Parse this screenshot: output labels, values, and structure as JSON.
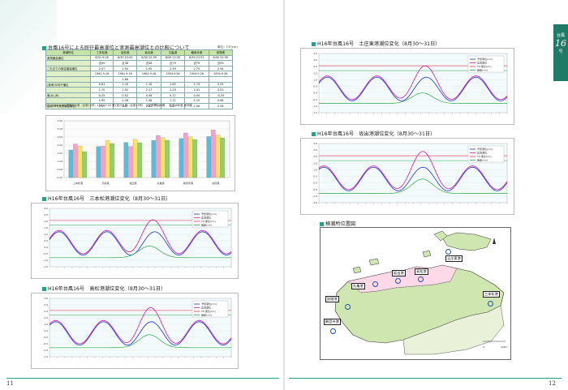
{
  "left": {
    "page_number": "11",
    "table_section_title": "台風16号による既往最高潮位と実測最高潮位との比較について",
    "table_unit": "単位：T.P.(cm)",
    "table_note": "(注) 1954.9.26 洞爺丸台風（台風15号）1961.9.16 第2室戸台風（台風18号）　※記録開始時期： 平成16年度 実測値",
    "table": {
      "columns": [
        "検潮所名",
        "三本松港",
        "高松港",
        "坂出港",
        "丸亀港",
        "観音寺港",
        "詫間港"
      ],
      "rows": [
        [
          "実測最高潮位",
          "8/31 0:18",
          "8/30 22:43",
          "8/30 22:39",
          "8/30 22:30",
          "8/30 21:51",
          "8/30 22:39"
        ],
        [
          "",
          "近30",
          "近38",
          "近38",
          "近79",
          "近79",
          "近94"
        ],
        [
          "これまでの既往最高潮位",
          "2.07",
          "1.94",
          "1.92",
          "2.59",
          "2.75",
          "2.94"
        ],
        [
          "",
          "1961.9.16",
          "1961.9.16",
          "1961.9.16",
          "1954.9.26",
          "1954.9.26",
          "1954.9.26"
        ],
        [
          "",
          "",
          "1.88",
          "",
          "",
          "",
          ""
        ],
        [
          "(参考)平均干潮位",
          "0.81",
          "1.20",
          "1.10",
          "1.65",
          "1.73",
          "2.05"
        ],
        [
          "",
          "1.70",
          "1.92",
          "2.17",
          "2.29",
          "2.41",
          "2.53"
        ],
        [
          "差(A)-(B)",
          "0.25",
          "0.52",
          "0.56",
          "0.17",
          "0.00",
          "-0.25"
        ],
        [
          "",
          "1.95",
          "1.28",
          "1.38",
          "1.11",
          "1.10",
          "0.88"
        ],
        [
          "台風16号実測最高潮位",
          "2.07",
          "2.27",
          "2.27",
          "2.27",
          "2.28",
          "2.28"
        ]
      ]
    },
    "bar_chart": {
      "type": "bar",
      "categories": [
        "三本松港",
        "高松港",
        "坂出港",
        "丸亀港",
        "観音寺港",
        "詫間港"
      ],
      "y_ticks": [
        "3.50",
        "3.00",
        "2.50",
        "2.00",
        "1.50",
        "1.00",
        "0.50",
        "0.00"
      ],
      "ylim": [
        0,
        3.5
      ],
      "series": [
        {
          "color": "#4fc0e0",
          "values": [
            1.7,
            1.92,
            2.17,
            2.29,
            2.41,
            2.53
          ]
        },
        {
          "color": "#f2a0d0",
          "values": [
            2.07,
            1.94,
            1.92,
            2.59,
            2.75,
            2.94
          ]
        },
        {
          "color": "#f7e26a",
          "values": [
            1.95,
            2.28,
            2.36,
            2.46,
            2.51,
            2.62
          ]
        },
        {
          "color": "#8fd16a",
          "values": [
            1.6,
            2.1,
            2.15,
            2.3,
            2.35,
            2.45
          ]
        }
      ]
    },
    "chart1": {
      "title": "H16年台風16号　三本松港潮位変化（8月30〜31日）",
      "legend": [
        "予想潮位(cm)",
        "実測潮位",
        "T.P.潮位(cm)",
        "偏差(cm)"
      ],
      "y_ticks": [
        "3.0",
        "2.5",
        "2.0",
        "1.5",
        "1.0",
        "0.5",
        "0.0",
        "-0.5",
        "-1.0",
        "-1.5"
      ],
      "ylim": [
        -1.5,
        3.0
      ]
    },
    "chart2": {
      "title": "H16年台風16号　高松港潮位変化（8月30〜31日）",
      "legend": [
        "予想潮位(cm)",
        "実測潮位",
        "T.P.潮位(cm)",
        "偏差(cm)"
      ],
      "y_ticks": [
        "3.0",
        "2.5",
        "2.0",
        "1.5",
        "1.0",
        "0.5",
        "0.0",
        "-0.5",
        "-1.0",
        "-1.5"
      ],
      "ylim": [
        -1.5,
        3.0
      ]
    }
  },
  "right": {
    "page_number": "12",
    "tab_lines": [
      "台風",
      "16",
      "号"
    ],
    "chart3": {
      "title": "H16年台風16号　土庄東港潮位変化（8月30〜31日）",
      "legend": [
        "予想潮位(cm)",
        "実測潮位",
        "T.P.潮位(cm)",
        "偏差(cm)"
      ],
      "y_ticks": [
        "3.0",
        "2.5",
        "2.0",
        "1.5",
        "1.0",
        "0.5",
        "0.0",
        "-0.5",
        "-1.0",
        "-1.5"
      ],
      "ylim": [
        -1.5,
        3.0
      ]
    },
    "chart4": {
      "title": "H16年台風16号　坂出港潮位変化（8月30〜31日）",
      "legend": [
        "予想潮位(cm)",
        "実測潮位",
        "T.P.潮位(cm)",
        "偏差(cm)"
      ],
      "y_ticks": [
        "3.0",
        "2.5",
        "2.0",
        "1.5",
        "1.0",
        "0.5",
        "0.0",
        "-0.5",
        "-1.0",
        "-1.5"
      ],
      "ylim": [
        -1.5,
        3.0
      ]
    },
    "map_title": "検潮所位置図",
    "map_labels": {
      "tonosho": "土庄東港",
      "sakaide": "坂出港",
      "takamatsu": "高松港",
      "marugame": "丸亀港",
      "takuma": "詫間港",
      "kanonji": "観音寺港",
      "sanbonmatsu": "三本松港"
    }
  }
}
